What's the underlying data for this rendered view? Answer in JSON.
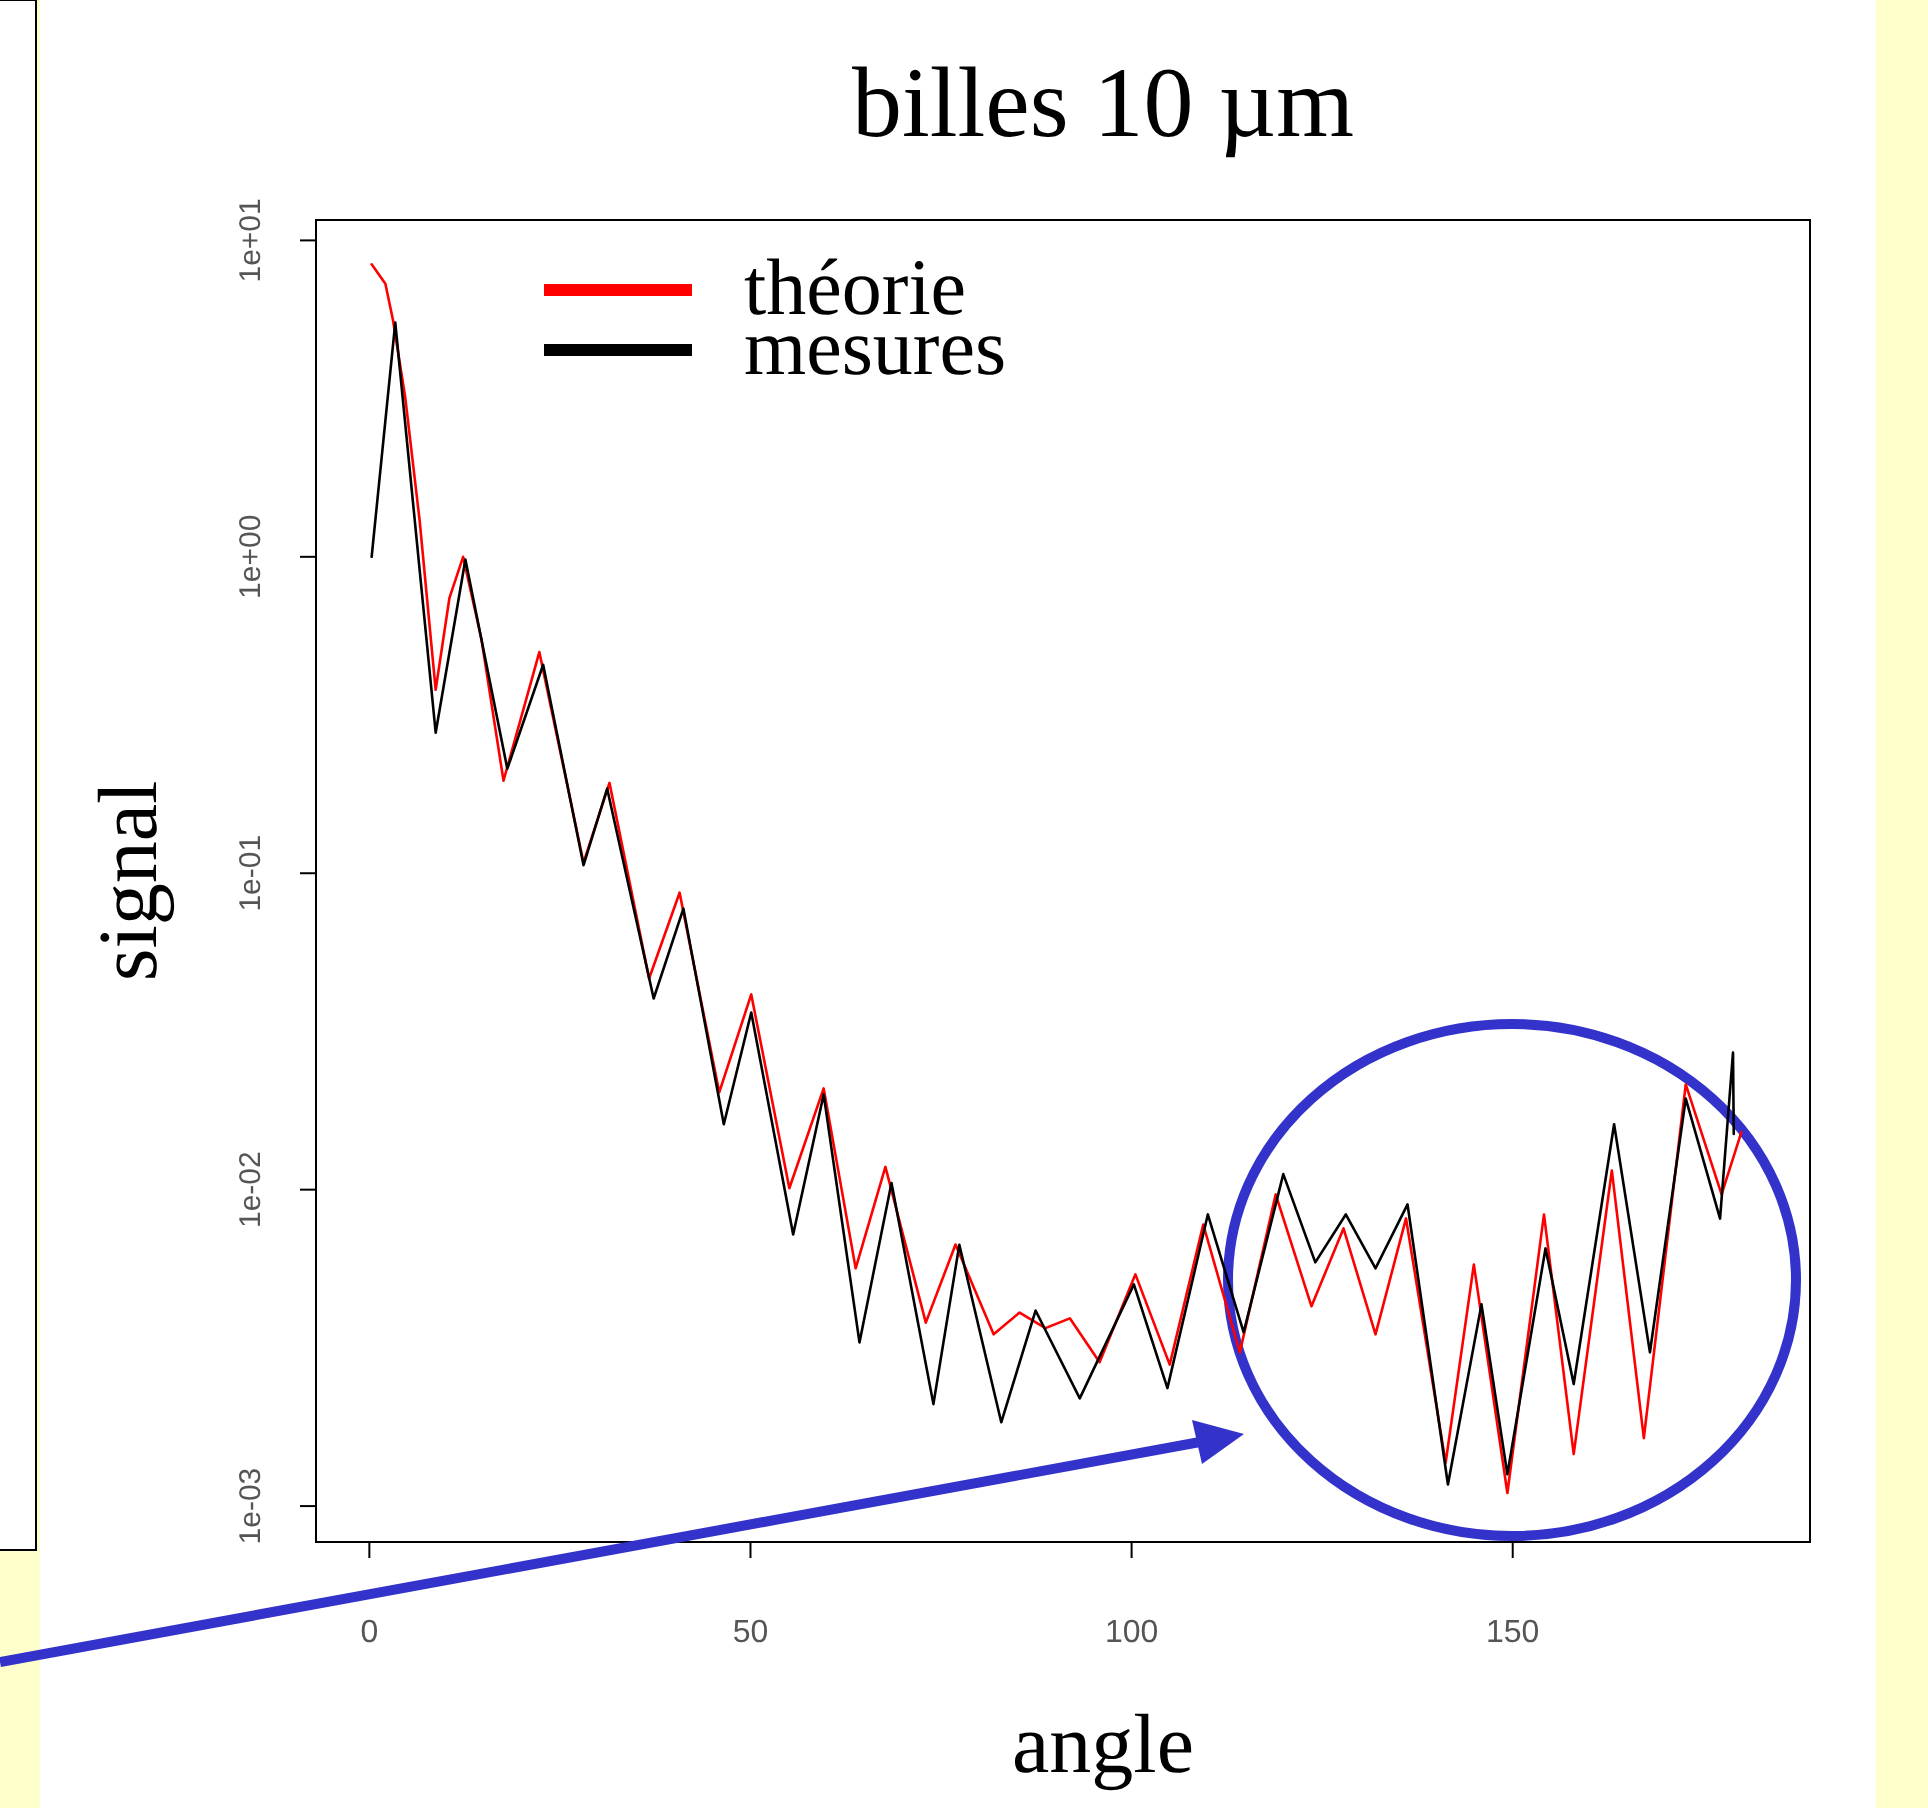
{
  "chart_data": {
    "type": "line",
    "title": "billes 10 µm",
    "xlabel": "angle",
    "ylabel": "signal",
    "log": "y",
    "legend": "top",
    "grid": false,
    "marker": "none",
    "line_style": "solid",
    "xlim": [
      -7,
      189
    ],
    "xticks": [
      0,
      50,
      100,
      150
    ],
    "ylim": [
      0.00077,
      11.6
    ],
    "yticks": [
      {
        "value": 0.001,
        "label": "1e-03"
      },
      {
        "value": 0.01,
        "label": "1e-02"
      },
      {
        "value": 0.1,
        "label": "1e-01"
      },
      {
        "value": 1,
        "label": "1e+00"
      },
      {
        "value": 10,
        "label": "1e+01"
      }
    ],
    "series": [
      {
        "name": "théorie",
        "color": "#ff0000",
        "x": [
          0.3,
          2.1,
          3.1,
          4.7,
          6.6,
          8.7,
          10.5,
          12.3,
          14.7,
          17.6,
          22.3,
          28.1,
          31.5,
          36.7,
          40.7,
          45.9,
          50.1,
          55.1,
          59.6,
          63.8,
          67.7,
          73,
          76.9,
          81.9,
          85.3,
          88.7,
          91.9,
          95.8,
          100.5,
          105,
          109.4,
          114.2,
          118.9,
          123.6,
          127.8,
          132,
          136,
          141.2,
          144.9,
          149.3,
          154.1,
          158,
          163,
          167.2,
          172.7,
          177.4,
          180
        ],
        "values": [
          8.4,
          7.3,
          5.6,
          3.2,
          1.3,
          0.38,
          0.74,
          1.0,
          0.55,
          0.196,
          0.5,
          0.108,
          0.193,
          0.0465,
          0.0868,
          0.0203,
          0.0414,
          0.0101,
          0.0209,
          0.00564,
          0.0118,
          0.0038,
          0.00671,
          0.00349,
          0.00409,
          0.00365,
          0.00392,
          0.00285,
          0.0054,
          0.0028,
          0.00776,
          0.00306,
          0.00966,
          0.00428,
          0.00754,
          0.00349,
          0.00811,
          0.00137,
          0.0058,
          0.0011,
          0.00835,
          0.00146,
          0.0115,
          0.00164,
          0.0215,
          0.00966,
          0.0152
        ]
      },
      {
        "name": "mesures",
        "color": "#000000",
        "x": [
          0.3,
          3.4,
          8.7,
          12.6,
          18.1,
          22.8,
          28.1,
          31.2,
          37.3,
          41.2,
          46.5,
          50.1,
          55.6,
          59.6,
          64.3,
          68.5,
          74,
          77.4,
          82.9,
          87.4,
          93.2,
          100.3,
          104.7,
          110,
          114.7,
          119.9,
          124.1,
          128.1,
          132,
          136.2,
          141.5,
          145.9,
          149.3,
          154.3,
          158,
          163.3,
          168,
          172.7,
          177.2,
          178.9,
          179
        ],
        "values": [
          1.0,
          5.5,
          0.278,
          0.98,
          0.214,
          0.456,
          0.106,
          0.185,
          0.0402,
          0.0773,
          0.0161,
          0.0363,
          0.00722,
          0.02,
          0.00329,
          0.0105,
          0.0021,
          0.0067,
          0.00184,
          0.00415,
          0.00219,
          0.00502,
          0.00236,
          0.00835,
          0.00354,
          0.0112,
          0.00589,
          0.00835,
          0.00564,
          0.00898,
          0.00117,
          0.00434,
          0.00126,
          0.00652,
          0.00243,
          0.0161,
          0.00306,
          0.0194,
          0.0081,
          0.0271,
          0.015
        ]
      }
    ]
  }
}
